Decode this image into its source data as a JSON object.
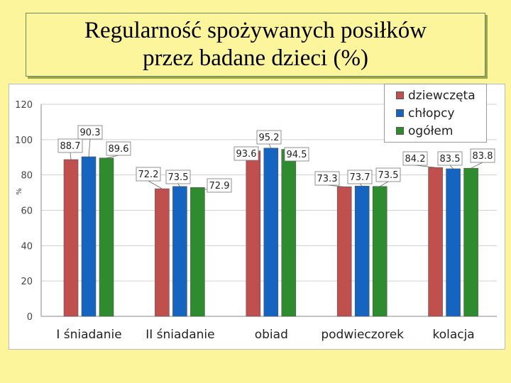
{
  "title": {
    "line1": "Regularność spożywanych posiłków",
    "line2": "przez badane dzieci (%)"
  },
  "chart_data": {
    "type": "bar",
    "title": "Regularność spożywanych posiłków przez badane dzieci (%)",
    "ylabel": "%",
    "xlabel": "",
    "ylim": [
      0,
      120
    ],
    "yticks": [
      0,
      20,
      40,
      60,
      80,
      100,
      120
    ],
    "grid": true,
    "legend_position": "top-right",
    "categories": [
      "I śniadanie",
      "II śniadanie",
      "obiad",
      "podwieczorek",
      "kolacja"
    ],
    "series": [
      {
        "name": "dziewczęta",
        "color": "#c0504d",
        "values": [
          88.7,
          72.2,
          93.6,
          73.3,
          84.2
        ]
      },
      {
        "name": "chłopcy",
        "color": "#1565c0",
        "values": [
          90.3,
          73.5,
          95.2,
          73.7,
          83.5
        ]
      },
      {
        "name": "ogółem",
        "color": "#2e8b2e",
        "values": [
          89.6,
          72.9,
          94.5,
          73.5,
          83.8
        ]
      }
    ]
  }
}
